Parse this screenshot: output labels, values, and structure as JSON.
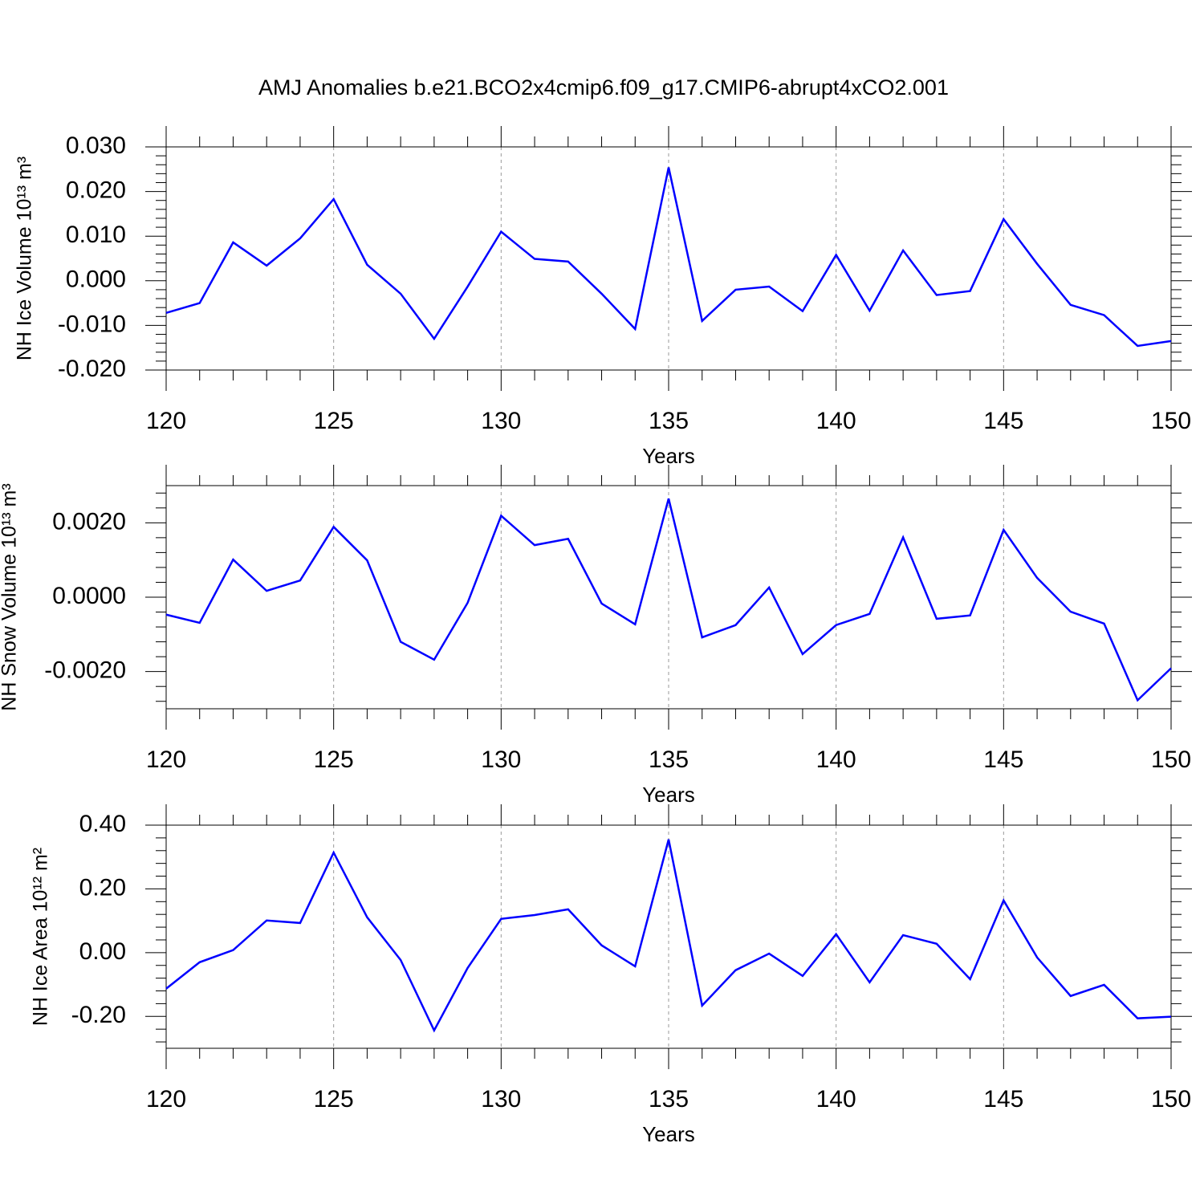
{
  "title": "AMJ Anomalies b.e21.BCO2x4cmip6.f09_g17.CMIP6-abrupt4xCO2.001",
  "chart_data": [
    {
      "type": "line",
      "ylabel": "NH Ice Volume 10¹³ m³",
      "xlabel": "Years",
      "color": "#0000ff",
      "grid": true,
      "x": [
        120,
        121,
        122,
        123,
        124,
        125,
        126,
        127,
        128,
        129,
        130,
        131,
        132,
        133,
        134,
        135,
        136,
        137,
        138,
        139,
        140,
        141,
        142,
        143,
        144,
        145,
        146,
        147,
        148,
        149,
        150
      ],
      "values": [
        -0.0072,
        -0.005,
        0.0086,
        0.0034,
        0.0095,
        0.0183,
        0.0036,
        -0.0029,
        -0.013,
        -0.0013,
        0.011,
        0.0049,
        0.0043,
        -0.0029,
        -0.0108,
        0.0254,
        -0.009,
        -0.002,
        -0.0013,
        -0.0068,
        0.0058,
        -0.0067,
        0.0068,
        -0.0032,
        -0.0023,
        0.0138,
        0.0038,
        -0.0054,
        -0.0077,
        -0.0146,
        -0.0135
      ],
      "xlim": [
        120,
        150
      ],
      "xticks": [
        120,
        125,
        130,
        135,
        140,
        145,
        150
      ],
      "ylim": [
        -0.02,
        0.03
      ],
      "yticks": [
        {
          "value": -0.02,
          "label": "-0.020"
        },
        {
          "value": -0.01,
          "label": "-0.010"
        },
        {
          "value": 0,
          "label": "0.000"
        },
        {
          "value": 0.01,
          "label": "0.010"
        },
        {
          "value": 0.02,
          "label": "0.020"
        },
        {
          "value": 0.03,
          "label": "0.030"
        }
      ]
    },
    {
      "type": "line",
      "ylabel": "NH Snow Volume 10¹³ m³",
      "xlabel": "Years",
      "color": "#0000ff",
      "grid": true,
      "x": [
        120,
        121,
        122,
        123,
        124,
        125,
        126,
        127,
        128,
        129,
        130,
        131,
        132,
        133,
        134,
        135,
        136,
        137,
        138,
        139,
        140,
        141,
        142,
        143,
        144,
        145,
        146,
        147,
        148,
        149,
        150
      ],
      "values": [
        -0.00047,
        -0.00069,
        0.00101,
        0.00017,
        0.00045,
        0.00189,
        0.00099,
        -0.0012,
        -0.00168,
        -0.00015,
        0.00219,
        0.0014,
        0.00157,
        -0.00017,
        -0.00073,
        0.00265,
        -0.00108,
        -0.00075,
        0.00026,
        -0.00153,
        -0.00075,
        -0.00045,
        0.00161,
        -0.00058,
        -0.00049,
        0.00181,
        0.00052,
        -0.00039,
        -0.00071,
        -0.00277,
        -0.00191
      ],
      "xlim": [
        120,
        150
      ],
      "xticks": [
        120,
        125,
        130,
        135,
        140,
        145,
        150
      ],
      "ylim": [
        -0.003,
        0.003
      ],
      "yticks": [
        {
          "value": -0.002,
          "label": "-0.0020"
        },
        {
          "value": 0,
          "label": "0.0000"
        },
        {
          "value": 0.002,
          "label": "0.0020"
        }
      ]
    },
    {
      "type": "line",
      "ylabel": "NH Ice Area 10¹² m²",
      "xlabel": "Years",
      "color": "#0000ff",
      "grid": true,
      "x": [
        120,
        121,
        122,
        123,
        124,
        125,
        126,
        127,
        128,
        129,
        130,
        131,
        132,
        133,
        134,
        135,
        136,
        137,
        138,
        139,
        140,
        141,
        142,
        143,
        144,
        145,
        146,
        147,
        148,
        149,
        150
      ],
      "values": [
        -0.113,
        -0.03,
        0.008,
        0.101,
        0.093,
        0.314,
        0.111,
        -0.023,
        -0.244,
        -0.048,
        0.106,
        0.118,
        0.136,
        0.023,
        -0.043,
        0.355,
        -0.166,
        -0.055,
        -0.003,
        -0.073,
        0.058,
        -0.093,
        0.055,
        0.028,
        -0.083,
        0.164,
        -0.015,
        -0.136,
        -0.101,
        -0.206,
        -0.201
      ],
      "xlim": [
        120,
        150
      ],
      "xticks": [
        120,
        125,
        130,
        135,
        140,
        145,
        150
      ],
      "ylim": [
        -0.3,
        0.4
      ],
      "yticks": [
        {
          "value": -0.2,
          "label": "-0.20"
        },
        {
          "value": 0,
          "label": "0.00"
        },
        {
          "value": 0.2,
          "label": "0.20"
        },
        {
          "value": 0.4,
          "label": "0.40"
        }
      ]
    }
  ]
}
